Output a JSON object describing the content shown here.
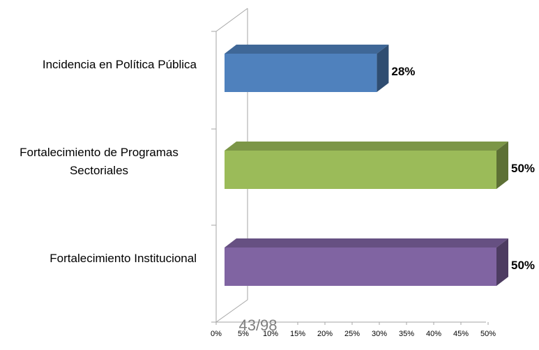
{
  "chart_data": {
    "type": "bar3d",
    "categories": [
      "Incidencia en Política Pública",
      "Fortalecimiento de Programas Sectoriales",
      "Fortalecimiento Institucional"
    ],
    "values": [
      28,
      50,
      50
    ],
    "value_labels": [
      "28%",
      "50%",
      "50%"
    ],
    "colors": [
      "#4f81bd",
      "#9bbb59",
      "#8064a2"
    ],
    "xlim": [
      0,
      50
    ],
    "xticks": [
      {
        "value": 0,
        "label": "0%"
      },
      {
        "value": 5,
        "label": "5%"
      },
      {
        "value": 10,
        "label": "10%"
      },
      {
        "value": 15,
        "label": "15%"
      },
      {
        "value": 20,
        "label": "20%"
      },
      {
        "value": 25,
        "label": "25%"
      },
      {
        "value": 30,
        "label": "30%"
      },
      {
        "value": 35,
        "label": "35%"
      },
      {
        "value": 40,
        "label": "40%"
      },
      {
        "value": 45,
        "label": "45%"
      },
      {
        "value": 50,
        "label": "50%"
      }
    ],
    "annotation": "43/98"
  }
}
